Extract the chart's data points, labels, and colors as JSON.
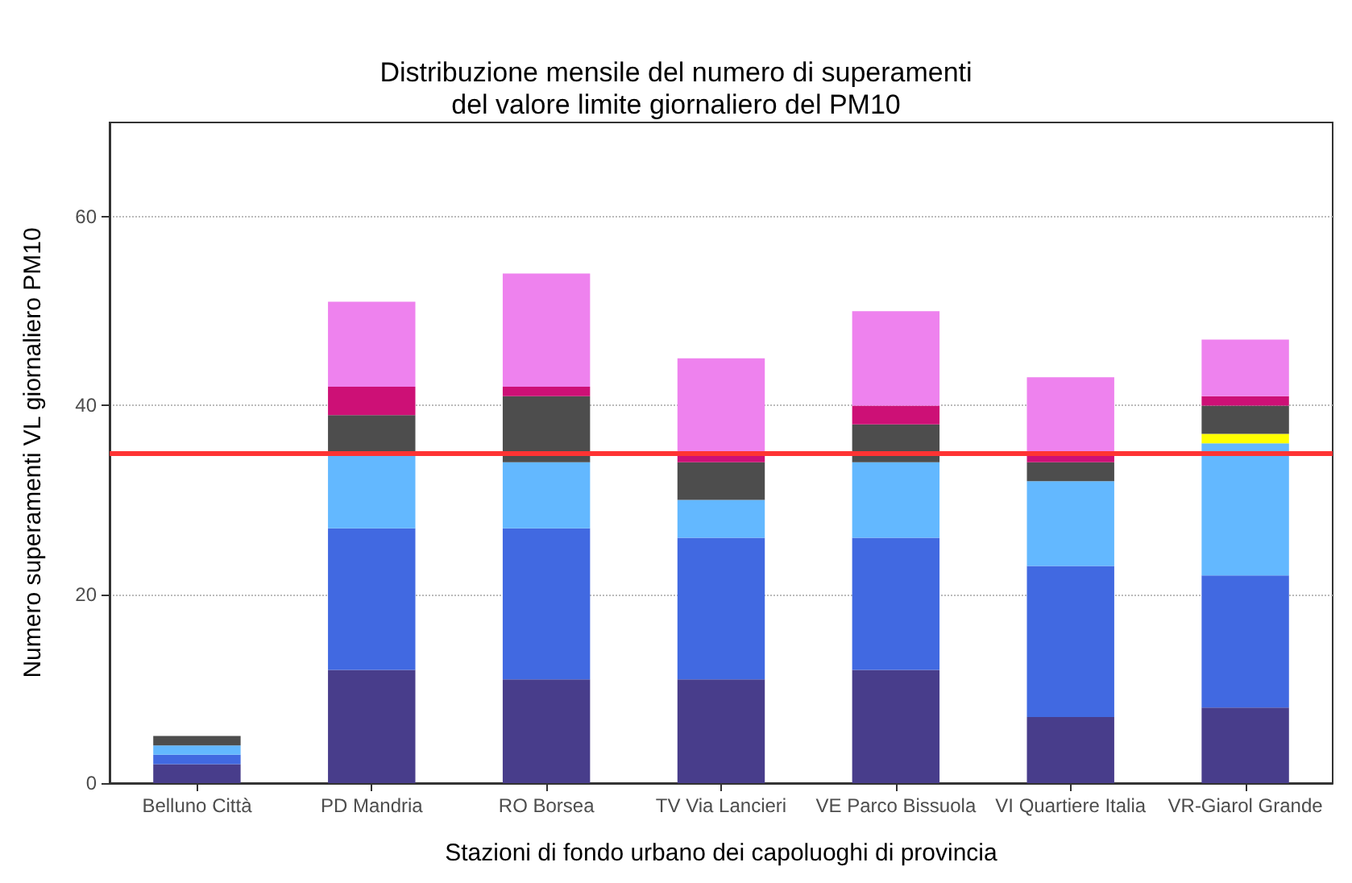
{
  "chart_data": {
    "type": "bar",
    "title": "Distribuzione mensile del numero di superamenti\ndel valore limite giornaliero del PM10",
    "xlabel": "Stazioni di fondo urbano dei capoluoghi di provincia",
    "ylabel": "Numero superamenti VL giornaliero PM10",
    "categories": [
      "Belluno Città",
      "PD Mandria",
      "RO Borsea",
      "TV Via Lancieri",
      "VE Parco Bissuola",
      "VI Quartiere Italia",
      "VR-Giarol Grande"
    ],
    "stacked": true,
    "series": [
      {
        "color": "#483d8b",
        "values": [
          2,
          12,
          11,
          11,
          12,
          7,
          8
        ]
      },
      {
        "color": "#4169e1",
        "values": [
          1,
          15,
          16,
          15,
          14,
          16,
          14
        ]
      },
      {
        "color": "#63b8ff",
        "values": [
          1,
          8,
          7,
          4,
          8,
          9,
          14
        ]
      },
      {
        "color": "#ffff00",
        "values": [
          0,
          0,
          0,
          0,
          0,
          0,
          1
        ]
      },
      {
        "color": "#4d4d4d",
        "values": [
          1,
          4,
          7,
          4,
          4,
          2,
          3
        ]
      },
      {
        "color": "#cd1076",
        "values": [
          0,
          3,
          1,
          1,
          2,
          1,
          1
        ]
      },
      {
        "color": "#ee82ee",
        "values": [
          0,
          9,
          12,
          10,
          10,
          8,
          6
        ]
      }
    ],
    "ylim": [
      0,
      70
    ],
    "yticks": [
      0,
      20,
      40,
      60
    ],
    "grid": "y",
    "ref_lines": [
      {
        "axis": "y",
        "value": 35,
        "color": "#ff3333"
      }
    ]
  }
}
